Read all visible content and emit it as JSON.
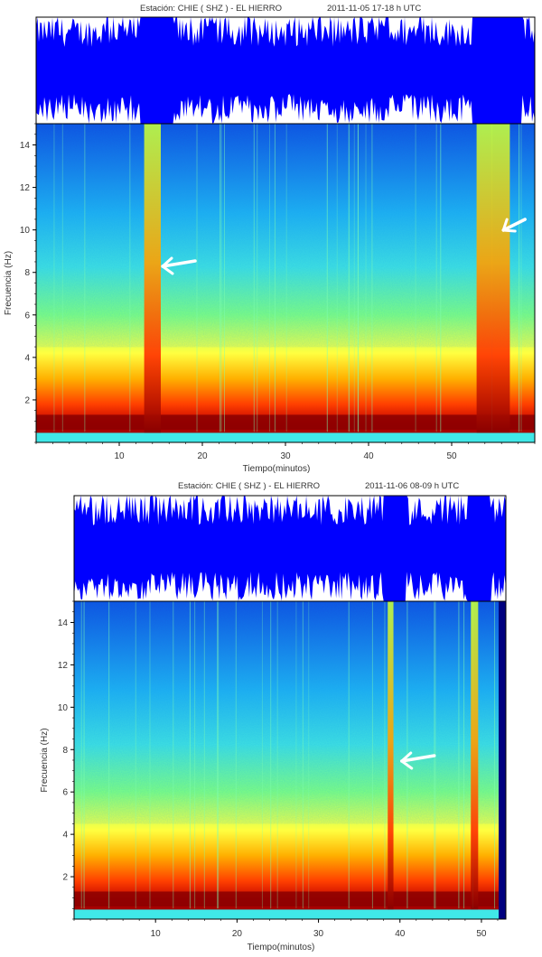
{
  "chart_data": [
    {
      "type": "heatmap",
      "header": {
        "station": "Estación:  CHIE ( SHZ ) - EL HIERRO",
        "datetime": "2011-11-05  17-18 h UTC"
      },
      "xlabel": "Tiempo(minutos)",
      "ylabel": "Frecuencia  (Hz)",
      "xlim": [
        0,
        60
      ],
      "ylim": [
        0,
        15
      ],
      "x_ticks": [
        10,
        20,
        30,
        40,
        50
      ],
      "y_ticks": [
        2,
        4,
        6,
        8,
        10,
        12,
        14
      ],
      "colorscale": [
        "#00007f",
        "#0000ff",
        "#0080ff",
        "#00e5ff",
        "#80ff80",
        "#ffff00",
        "#ff8000",
        "#ff0000",
        "#7f0000"
      ],
      "waveform_color": "#0000ff",
      "tremor_bands_minutes": [
        [
          13,
          15
        ],
        [
          53,
          57
        ]
      ],
      "arrow_annotations_minutes": [
        15,
        56
      ]
    },
    {
      "type": "heatmap",
      "header": {
        "station": "Estación:  CHIE ( SHZ ) - EL HIERRO",
        "datetime": "2011-11-06  08-09 h UTC"
      },
      "xlabel": "Tiempo(minutos)",
      "ylabel": "Frecuencia  (Hz)",
      "xlim": [
        0,
        53
      ],
      "ylim": [
        0,
        15
      ],
      "x_ticks": [
        10,
        20,
        30,
        40,
        50
      ],
      "y_ticks": [
        2,
        4,
        6,
        8,
        10,
        12,
        14
      ],
      "colorscale": [
        "#00007f",
        "#0000ff",
        "#0080ff",
        "#00e5ff",
        "#80ff80",
        "#ffff00",
        "#ff8000",
        "#ff0000",
        "#7f0000"
      ],
      "waveform_color": "#0000ff",
      "tremor_bands_minutes": [
        [
          38.5,
          39.2
        ],
        [
          48.7,
          49.6
        ]
      ],
      "arrow_annotations_minutes": [
        40
      ]
    }
  ]
}
